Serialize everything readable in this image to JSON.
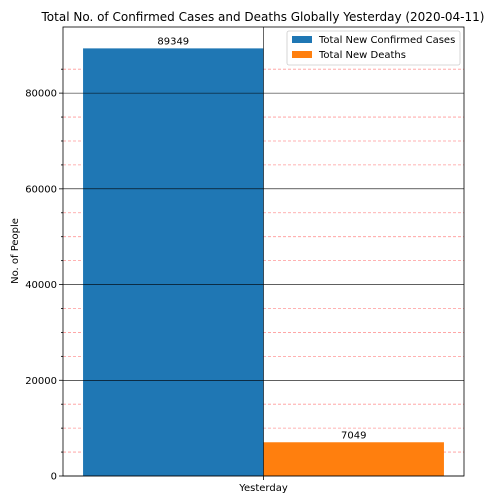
{
  "chart_data": {
    "type": "bar",
    "title": "Total No. of Confirmed Cases and Deaths Globally Yesterday (2020-04-11)",
    "xlabel": "",
    "ylabel": "No. of People",
    "categories": [
      "Yesterday"
    ],
    "series": [
      {
        "name": "Total New Confirmed Cases",
        "values": [
          89349
        ],
        "color": "#1f77b4"
      },
      {
        "name": "Total New Deaths",
        "values": [
          7049
        ],
        "color": "#ff7f0e"
      }
    ],
    "ylim": [
      0,
      93816
    ],
    "yticks": [
      0,
      20000,
      40000,
      60000,
      80000
    ],
    "yticks_minor": [
      5000,
      10000,
      15000,
      25000,
      30000,
      35000,
      45000,
      50000,
      55000,
      65000,
      70000,
      75000,
      85000
    ],
    "grid": {
      "major": true,
      "minor": true,
      "major_color": "#000000",
      "minor_color": "#ff9999"
    },
    "legend_position": "top-right"
  }
}
